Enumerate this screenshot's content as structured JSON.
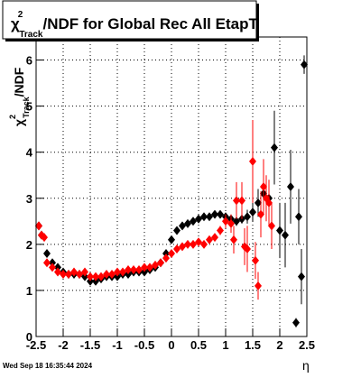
{
  "chart_data": {
    "type": "scatter",
    "title": {
      "symbol": "χ",
      "sup": "2",
      "sub": "Track",
      "text": "/NDF for Global Rec All EtapT"
    },
    "y_label": {
      "symbol": "χ",
      "sup": "2",
      "sub": "Track",
      "text": "/NDF"
    },
    "x_label": "η",
    "date": "Wed Sep 18 16:35:44 2024",
    "xlim": [
      -2.5,
      2.5
    ],
    "ylim": [
      0,
      6.5
    ],
    "xticks": [
      -2.5,
      -2,
      -1.5,
      -1,
      -0.5,
      0,
      0.5,
      1,
      1.5,
      2,
      2.5
    ],
    "yticks": [
      0,
      1,
      2,
      3,
      4,
      5,
      6
    ],
    "grid": true,
    "series": [
      {
        "color": "#000000",
        "x": [
          -2.45,
          -2.4,
          -2.3,
          -2.2,
          -2.1,
          -2.0,
          -1.9,
          -1.8,
          -1.7,
          -1.6,
          -1.5,
          -1.4,
          -1.3,
          -1.2,
          -1.1,
          -1.0,
          -0.9,
          -0.8,
          -0.7,
          -0.6,
          -0.5,
          -0.4,
          -0.3,
          -0.2,
          -0.1,
          0.0,
          0.1,
          0.2,
          0.3,
          0.4,
          0.5,
          0.6,
          0.7,
          0.8,
          0.9,
          1.0,
          1.1,
          1.2,
          1.3,
          1.4,
          1.5,
          1.6,
          1.7,
          1.8,
          1.9,
          2.0,
          2.1,
          2.2,
          2.3,
          2.35,
          2.4,
          2.45
        ],
        "values": [
          2.4,
          2.2,
          1.8,
          1.6,
          1.5,
          1.4,
          1.35,
          1.35,
          1.35,
          1.3,
          1.2,
          1.2,
          1.25,
          1.3,
          1.3,
          1.3,
          1.35,
          1.35,
          1.4,
          1.4,
          1.4,
          1.45,
          1.5,
          1.6,
          1.8,
          2.1,
          2.3,
          2.4,
          2.45,
          2.5,
          2.55,
          2.6,
          2.6,
          2.65,
          2.65,
          2.6,
          2.55,
          2.5,
          2.55,
          2.6,
          2.7,
          2.9,
          3.1,
          3.0,
          4.1,
          2.3,
          2.2,
          3.25,
          0.3,
          2.6,
          1.3,
          5.9
        ],
        "errors": [
          0.05,
          0.05,
          0.02,
          0.02,
          0.02,
          0.02,
          0.02,
          0.02,
          0.02,
          0.02,
          0.02,
          0.02,
          0.02,
          0.02,
          0.02,
          0.02,
          0.02,
          0.02,
          0.02,
          0.02,
          0.02,
          0.02,
          0.02,
          0.02,
          0.02,
          0.02,
          0.02,
          0.02,
          0.02,
          0.02,
          0.02,
          0.02,
          0.02,
          0.02,
          0.02,
          0.02,
          0.05,
          0.1,
          0.1,
          0.15,
          0.2,
          0.3,
          0.3,
          0.4,
          0.8,
          0.6,
          0.7,
          0.8,
          0.1,
          0.6,
          0.6,
          0.2
        ]
      },
      {
        "color": "#ff0000",
        "x": [
          -2.45,
          -2.4,
          -2.35,
          -2.3,
          -2.2,
          -2.1,
          -2.0,
          -1.9,
          -1.8,
          -1.7,
          -1.6,
          -1.5,
          -1.4,
          -1.3,
          -1.2,
          -1.1,
          -1.0,
          -0.9,
          -0.8,
          -0.7,
          -0.6,
          -0.5,
          -0.4,
          -0.3,
          -0.2,
          -0.1,
          0.0,
          0.1,
          0.2,
          0.3,
          0.4,
          0.5,
          0.6,
          0.7,
          0.8,
          0.9,
          1.0,
          1.1,
          1.15,
          1.2,
          1.3,
          1.35,
          1.4,
          1.5,
          1.55,
          1.6,
          1.65,
          1.7,
          1.75,
          1.8,
          1.85
        ],
        "values": [
          2.4,
          2.2,
          2.15,
          1.6,
          1.5,
          1.4,
          1.35,
          1.35,
          1.4,
          1.35,
          1.4,
          1.3,
          1.3,
          1.3,
          1.35,
          1.35,
          1.4,
          1.4,
          1.45,
          1.45,
          1.45,
          1.5,
          1.5,
          1.55,
          1.6,
          1.7,
          1.8,
          1.9,
          1.95,
          2.0,
          2.0,
          2.05,
          2.0,
          2.1,
          2.15,
          2.3,
          2.5,
          2.45,
          2.1,
          2.95,
          2.95,
          1.95,
          1.9,
          3.8,
          1.65,
          1.1,
          2.65,
          3.25,
          3.0,
          2.9,
          2.4
        ],
        "errors": [
          0.05,
          0.05,
          0.05,
          0.02,
          0.02,
          0.02,
          0.02,
          0.02,
          0.02,
          0.02,
          0.02,
          0.02,
          0.02,
          0.02,
          0.02,
          0.02,
          0.02,
          0.02,
          0.02,
          0.02,
          0.02,
          0.02,
          0.02,
          0.02,
          0.02,
          0.02,
          0.02,
          0.02,
          0.02,
          0.02,
          0.02,
          0.02,
          0.02,
          0.05,
          0.05,
          0.1,
          0.15,
          0.2,
          0.3,
          0.4,
          0.4,
          0.4,
          0.5,
          0.9,
          0.4,
          0.3,
          0.5,
          0.6,
          0.5,
          0.5,
          0.5
        ]
      }
    ]
  }
}
